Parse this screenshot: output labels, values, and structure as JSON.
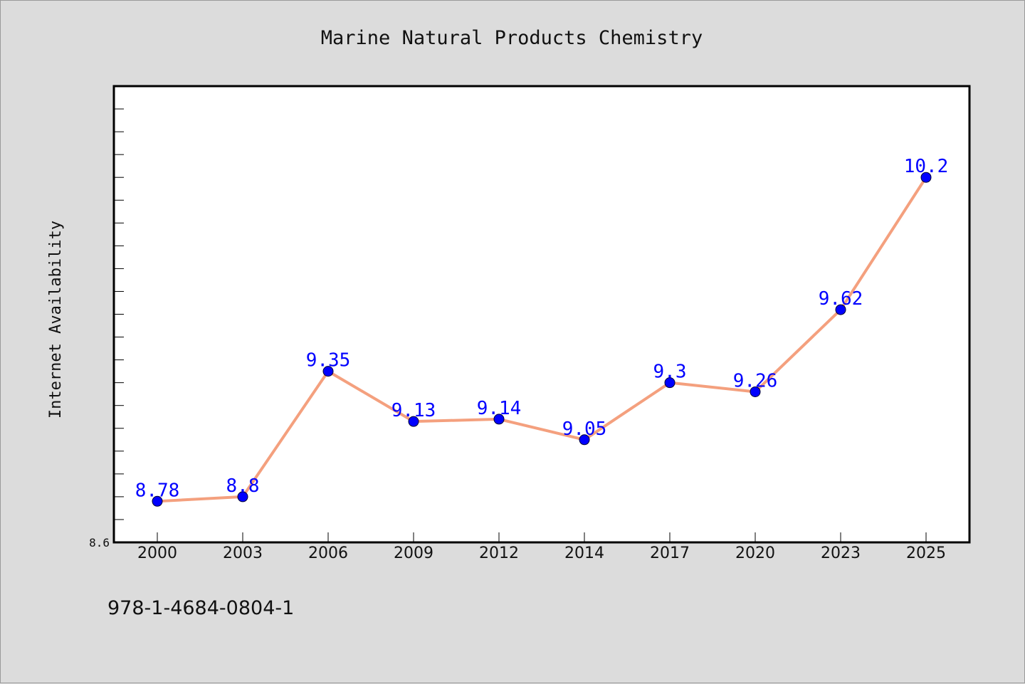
{
  "chart_data": {
    "type": "line",
    "title": "Marine Natural Products Chemistry",
    "xlabel": "",
    "ylabel": "Internet Availability",
    "categories": [
      "2000",
      "2003",
      "2006",
      "2009",
      "2012",
      "2014",
      "2017",
      "2020",
      "2023",
      "2025"
    ],
    "series": [
      {
        "values": [
          8.78,
          8.8,
          9.35,
          9.13,
          9.14,
          9.05,
          9.3,
          9.26,
          9.62,
          10.2
        ],
        "data_labels": [
          "8.78",
          "8.8",
          "9.35",
          "9.13",
          "9.14",
          "9.05",
          "9.3",
          "9.26",
          "9.62",
          "10.2"
        ],
        "line_color": "#f4a07e",
        "marker_color": "#0000ff"
      }
    ],
    "ylim": [
      8.6,
      10.6
    ],
    "y_tick_labels": [
      "8.6"
    ],
    "grid": false,
    "legend": "none",
    "background_color": "#dcdcdc",
    "plot_background_color": "#ffffff"
  },
  "footer": {
    "isbn": "978-1-4684-0804-1"
  }
}
